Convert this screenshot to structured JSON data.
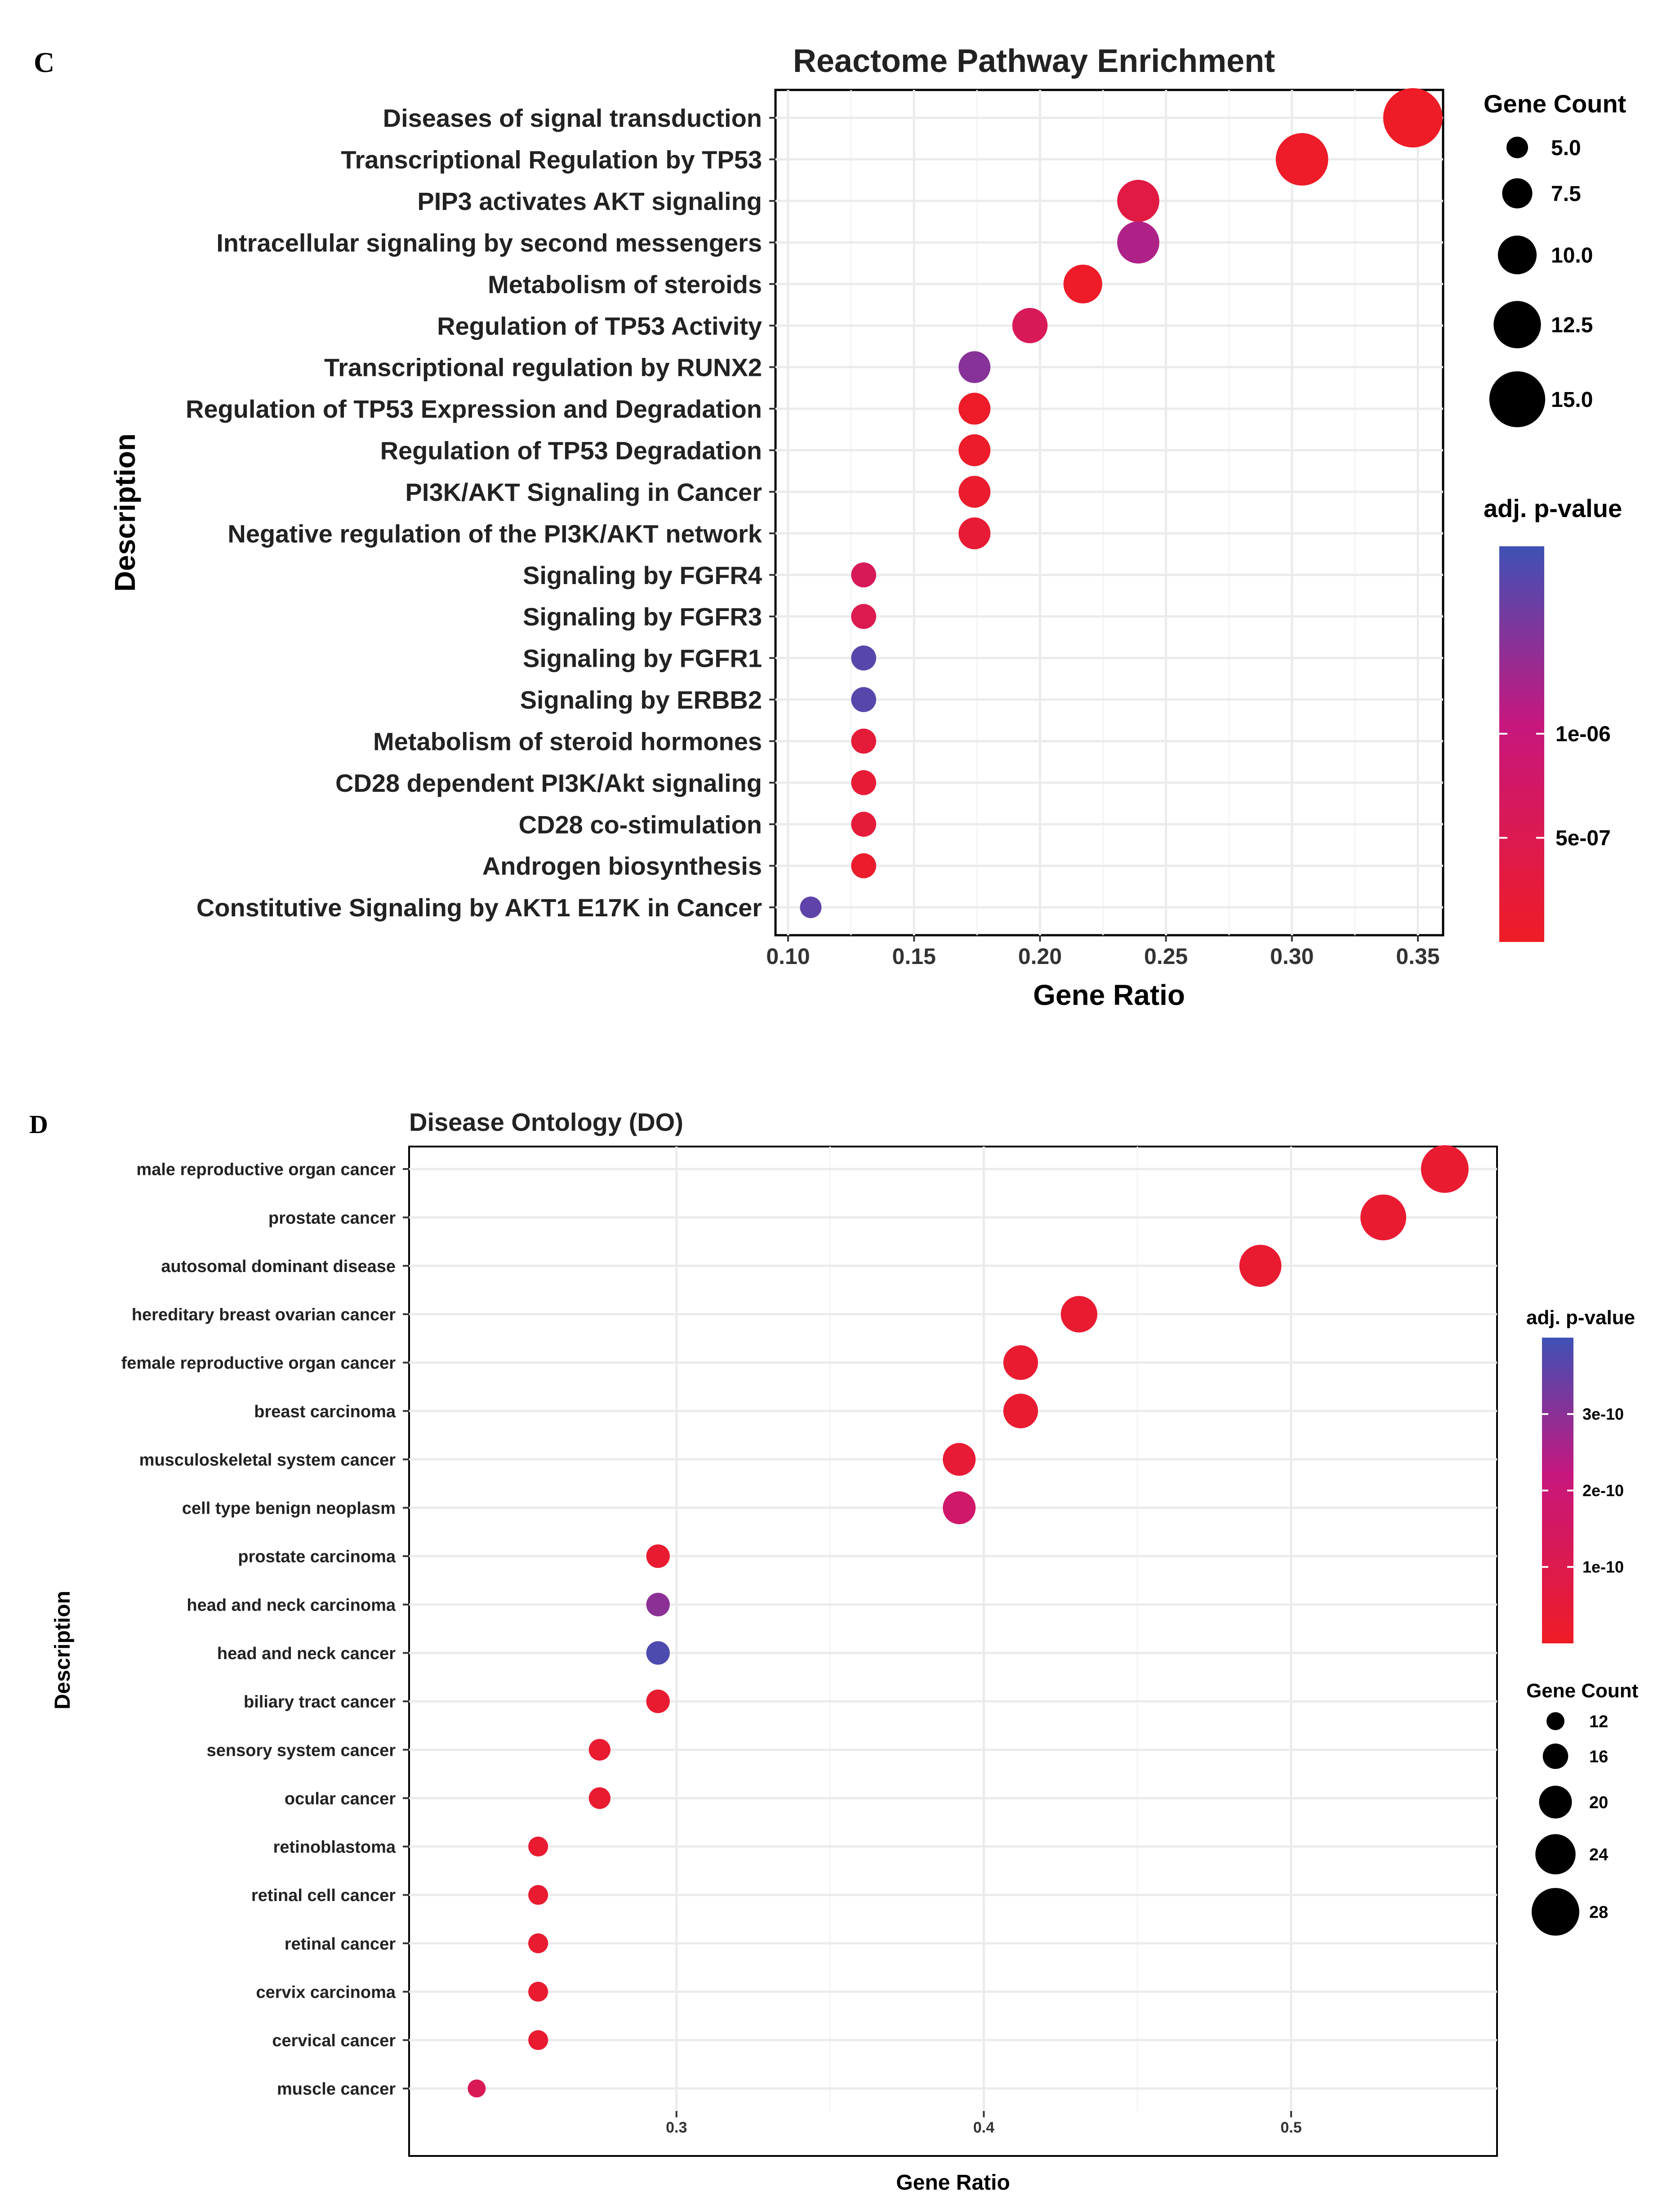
{
  "chart_data": [
    {
      "panel": "C",
      "type": "scatter",
      "title": "Reactome Pathway Enrichment",
      "xlabel": "Gene Ratio",
      "ylabel": "Description",
      "xlim": [
        0.095,
        0.36
      ],
      "xticks": [
        0.1,
        0.15,
        0.2,
        0.25,
        0.3,
        0.35
      ],
      "xtick_labels": [
        "0.10",
        "0.15",
        "0.20",
        "0.25",
        "0.30",
        "0.35"
      ],
      "grid": true,
      "categories": [
        "Diseases of signal transduction",
        "Transcriptional Regulation by TP53",
        "PIP3 activates AKT signaling",
        "Intracellular signaling by second messengers",
        "Metabolism of steroids",
        "Regulation of TP53 Activity",
        "Transcriptional regulation by RUNX2",
        "Regulation of TP53 Expression and Degradation",
        "Regulation of TP53 Degradation",
        "PI3K/AKT Signaling in Cancer",
        "Negative regulation of the PI3K/AKT network",
        "Signaling by FGFR4",
        "Signaling by FGFR3",
        "Signaling by FGFR1",
        "Signaling by ERBB2",
        "Metabolism of steroid hormones",
        "CD28 dependent PI3K/Akt signaling",
        "CD28 co-stimulation",
        "Androgen biosynthesis",
        "Constitutive Signaling by AKT1 E17K in Cancer"
      ],
      "x": [
        0.348,
        0.304,
        0.239,
        0.239,
        0.217,
        0.196,
        0.174,
        0.174,
        0.174,
        0.174,
        0.174,
        0.13,
        0.13,
        0.13,
        0.13,
        0.13,
        0.13,
        0.13,
        0.13,
        0.109
      ],
      "gene_count": [
        16,
        14,
        11,
        11,
        10,
        9,
        8,
        8,
        8,
        8,
        8,
        6,
        6,
        6,
        6,
        6,
        6,
        6,
        6,
        5
      ],
      "adj_p_value": [
        1e-08,
        3e-08,
        3.5e-07,
        1.2e-06,
        4e-08,
        6e-07,
        1.45e-06,
        4e-08,
        6e-08,
        1e-07,
        2e-07,
        6e-07,
        5e-07,
        1.75e-06,
        1.75e-06,
        2.5e-07,
        2e-07,
        2.5e-07,
        8e-08,
        1.7e-06
      ],
      "size_legend": {
        "title": "Gene Count",
        "position": "right",
        "values": [
          5.0,
          7.5,
          10.0,
          12.5,
          15.0
        ],
        "labels": [
          "5.0",
          "7.5",
          "10.0",
          "12.5",
          "15.0"
        ]
      },
      "color_legend": {
        "title": "adj. p-value",
        "position": "right",
        "range": [
          0,
          1.9e-06
        ],
        "ticks": [
          1e-06,
          5e-07
        ],
        "tick_labels": [
          "1e-06",
          "5e-07"
        ],
        "low_color": "#EE1C25",
        "high_color": "#3F51B5"
      }
    },
    {
      "panel": "D",
      "type": "scatter",
      "title": "Disease Ontology (DO)",
      "xlabel": "Gene Ratio",
      "ylabel": "Description",
      "xlim": [
        0.213,
        0.567
      ],
      "xticks": [
        0.3,
        0.4,
        0.5
      ],
      "xtick_labels": [
        "0.3",
        "0.4",
        "0.5"
      ],
      "grid": true,
      "categories": [
        "male reproductive organ cancer",
        "prostate cancer",
        "autosomal dominant disease",
        "hereditary breast ovarian cancer",
        "female reproductive organ cancer",
        "breast carcinoma",
        "musculoskeletal system cancer",
        "cell type benign neoplasm",
        "prostate carcinoma",
        "head and neck carcinoma",
        "head and neck cancer",
        "biliary tract cancer",
        "sensory system cancer",
        "ocular cancer",
        "retinoblastoma",
        "retinal cell cancer",
        "retinal cancer",
        "cervix carcinoma",
        "cervical cancer",
        "muscle cancer"
      ],
      "x": [
        0.55,
        0.53,
        0.49,
        0.431,
        0.412,
        0.412,
        0.392,
        0.392,
        0.294,
        0.294,
        0.294,
        0.294,
        0.275,
        0.275,
        0.255,
        0.255,
        0.255,
        0.255,
        0.255,
        0.235
      ],
      "gene_count": [
        28,
        27,
        25,
        22,
        21,
        21,
        20,
        20,
        15,
        15,
        15,
        15,
        14,
        14,
        13,
        13,
        13,
        13,
        13,
        12
      ],
      "adj_p_value": [
        3e-11,
        3e-11,
        3e-11,
        3e-11,
        3e-11,
        3e-11,
        4e-11,
        1.7e-10,
        3e-11,
        3e-10,
        3.8e-10,
        3e-11,
        3e-11,
        3e-11,
        3e-11,
        3e-11,
        3e-11,
        3e-11,
        3e-11,
        1.2e-10
      ],
      "color_legend": {
        "title": "adj. p-value",
        "position": "right",
        "range": [
          0,
          4e-10
        ],
        "ticks": [
          3e-10,
          2e-10,
          1e-10
        ],
        "tick_labels": [
          "3e-10",
          "2e-10",
          "1e-10"
        ],
        "low_color": "#EE1C25",
        "high_color": "#3F51B5"
      },
      "size_legend": {
        "title": "Gene Count",
        "position": "right",
        "values": [
          12,
          16,
          20,
          24,
          28
        ],
        "labels": [
          "12",
          "16",
          "20",
          "24",
          "28"
        ]
      }
    }
  ]
}
